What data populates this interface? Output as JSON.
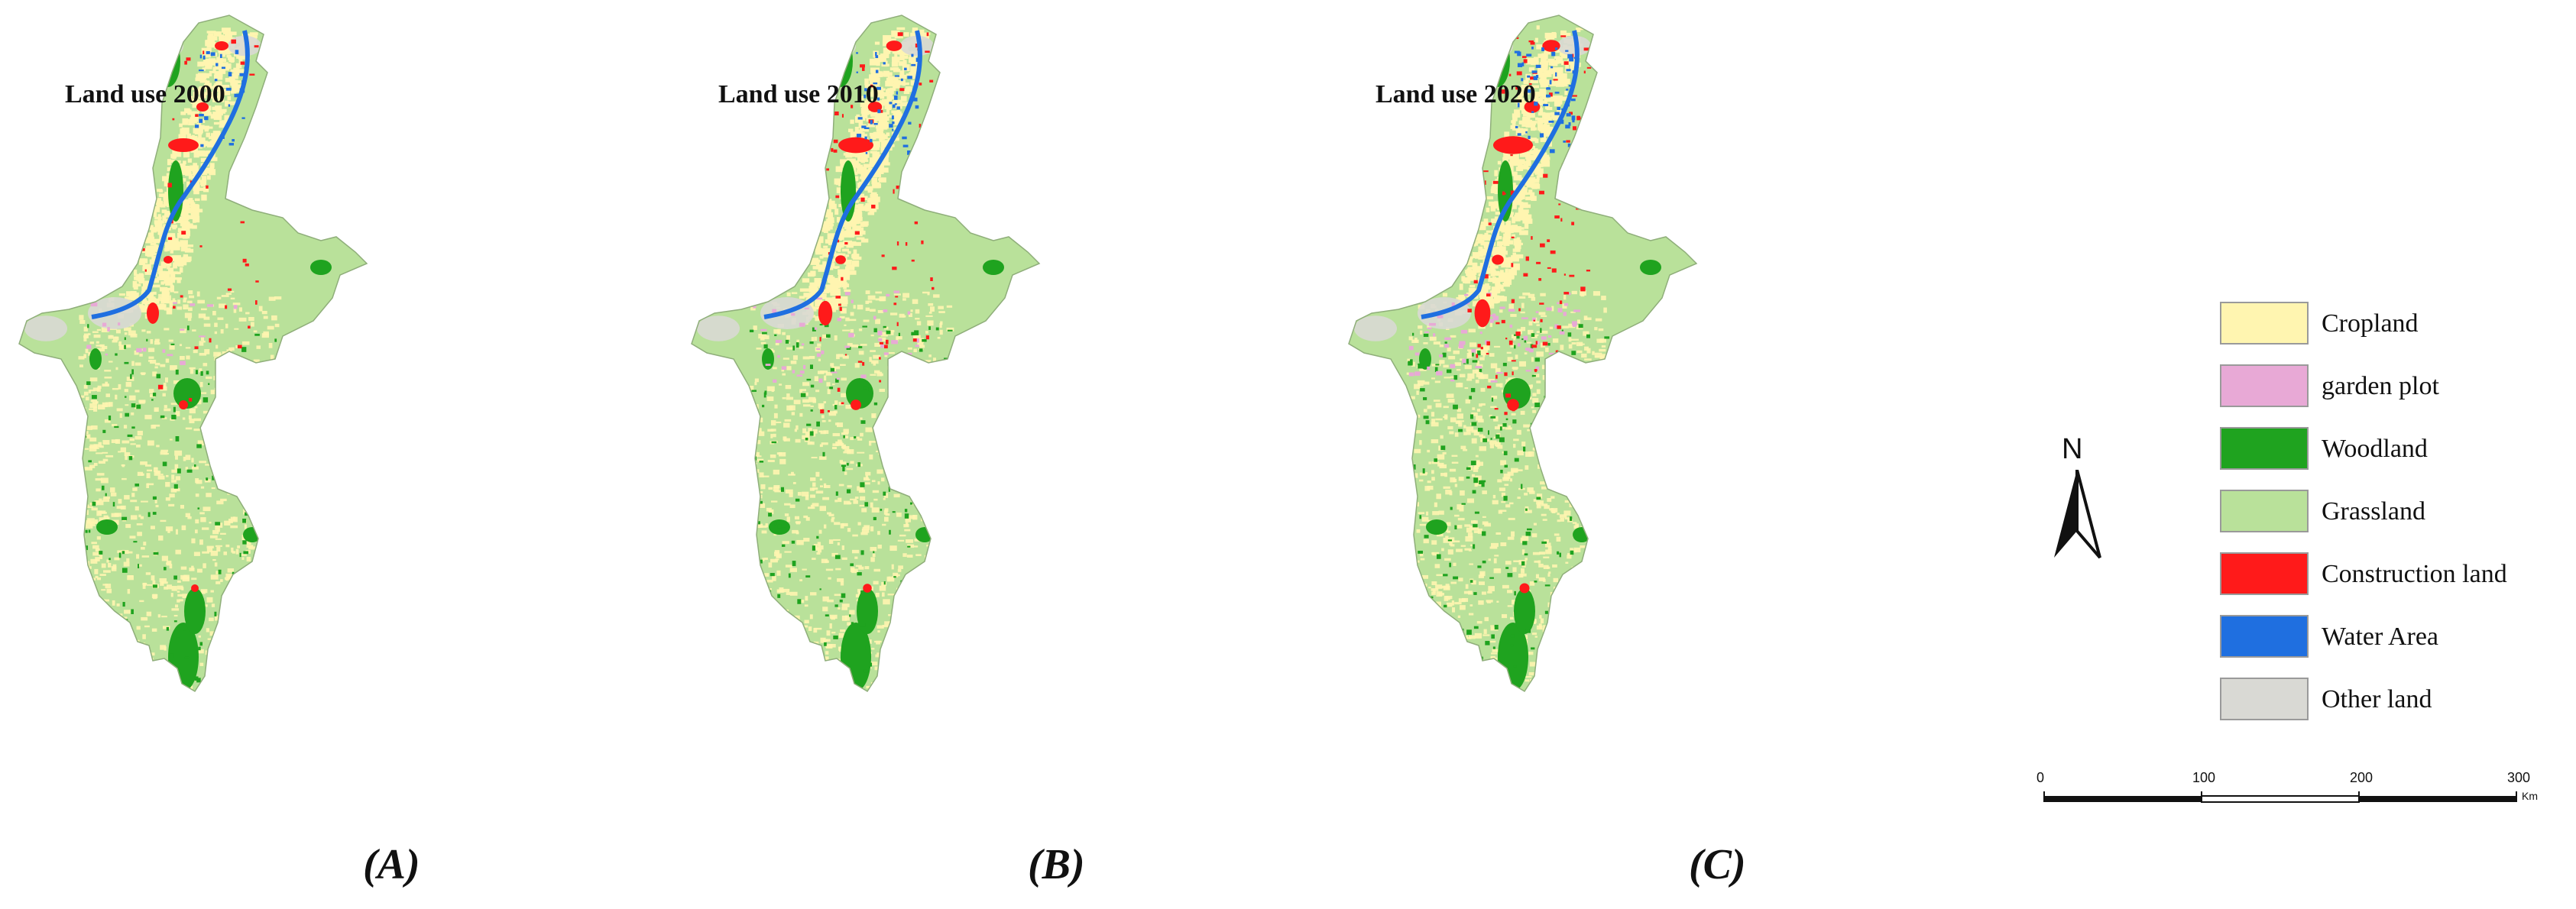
{
  "panels": [
    {
      "title": "Land use 2000",
      "label": "(A)"
    },
    {
      "title": "Land use 2010",
      "label": "(B)"
    },
    {
      "title": "Land use 2020",
      "label": "(C)"
    }
  ],
  "legend": [
    {
      "label": "Cropland",
      "color": "#fff5b0"
    },
    {
      "label": "garden plot",
      "color": "#e8a9d6"
    },
    {
      "label": "Woodland",
      "color": "#1fa31f"
    },
    {
      "label": "Grassland",
      "color": "#b9e19a"
    },
    {
      "label": "Construction land",
      "color": "#ff1a1a"
    },
    {
      "label": "Water Area",
      "color": "#1f6fe0"
    },
    {
      "label": "Other land",
      "color": "#d9d9d4"
    }
  ],
  "north_arrow": {
    "letter": "N"
  },
  "scale_bar": {
    "ticks": [
      "0",
      "100",
      "200",
      "300"
    ],
    "unit": "Km"
  }
}
